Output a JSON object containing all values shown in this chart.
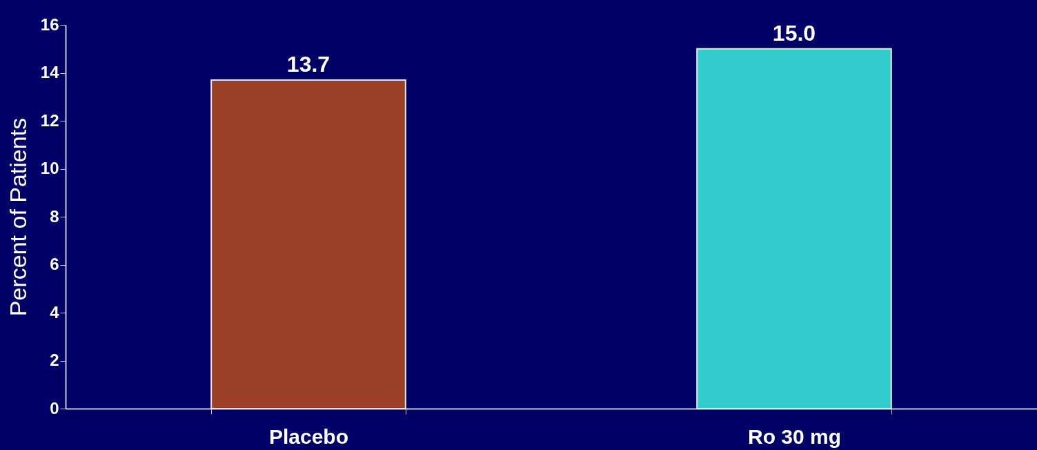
{
  "chart_data": {
    "type": "bar",
    "ylabel": "Percent of Patients",
    "categories": [
      "Placebo",
      "Ro 30 mg"
    ],
    "values": [
      13.7,
      15.0
    ],
    "colors": [
      "#9b3f26",
      "#33cccc"
    ],
    "ylim": [
      0,
      16
    ],
    "yticks": [
      0,
      2,
      4,
      6,
      8,
      10,
      12,
      14,
      16
    ],
    "data_labels": true,
    "value_labels": [
      "13.7",
      "15.0"
    ],
    "grid": false
  }
}
